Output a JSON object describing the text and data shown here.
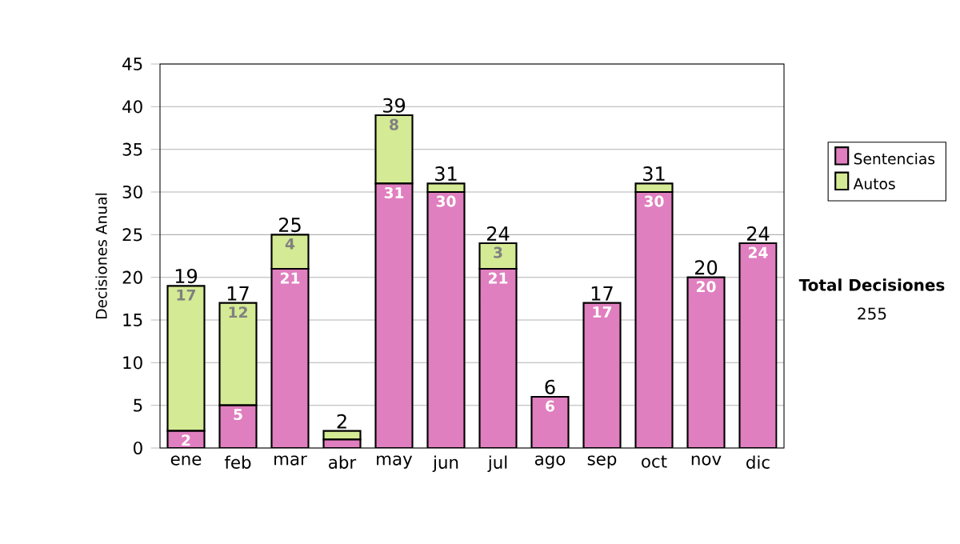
{
  "chart_data": {
    "type": "bar",
    "stacked": true,
    "ylabel": "Decisiones Anual",
    "categories": [
      "ene",
      "feb",
      "mar",
      "abr",
      "may",
      "jun",
      "jul",
      "ago",
      "sep",
      "oct",
      "nov",
      "dic"
    ],
    "series": [
      {
        "name": "Sentencias",
        "color": "#e07fbf",
        "values": [
          2,
          5,
          21,
          1,
          31,
          30,
          21,
          6,
          17,
          30,
          20,
          24
        ],
        "value_labels": [
          "2",
          "5",
          "21",
          null,
          "31",
          "30",
          "21",
          "6",
          "17",
          "30",
          "20",
          "24"
        ]
      },
      {
        "name": "Autos",
        "color": "#d4ea94",
        "values": [
          17,
          12,
          4,
          1,
          8,
          1,
          3,
          0,
          0,
          1,
          0,
          0
        ],
        "value_labels": [
          "17",
          "12",
          "4",
          null,
          "8",
          null,
          "3",
          null,
          null,
          null,
          null,
          null
        ]
      }
    ],
    "totals": [
      "19",
      "17",
      "25",
      "2",
      "39",
      "31",
      "24",
      "6",
      "17",
      "31",
      "20",
      "24"
    ],
    "ylim": [
      0,
      45
    ],
    "yticks": [
      0,
      5,
      10,
      15,
      20,
      25,
      30,
      35,
      40,
      45
    ],
    "grid": "y",
    "legend": "right",
    "annotations": [
      "Total Decisiones",
      "255"
    ]
  }
}
